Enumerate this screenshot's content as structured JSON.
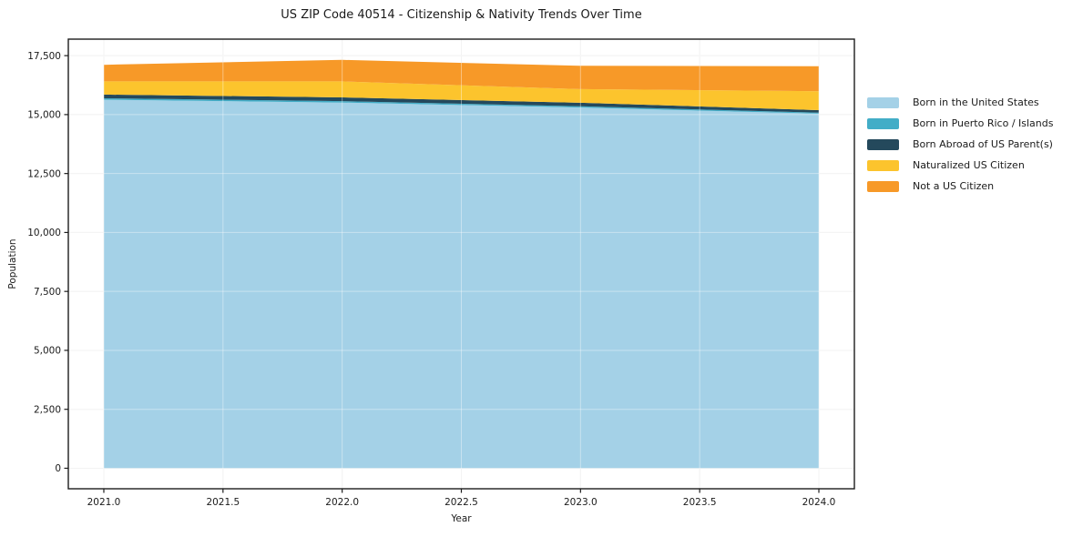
{
  "chart_data": {
    "type": "area",
    "stacked": true,
    "title": "US ZIP Code 40514 - Citizenship & Nativity Trends Over Time",
    "xlabel": "Year",
    "ylabel": "Population",
    "x": [
      2021,
      2022,
      2023,
      2024
    ],
    "series": [
      {
        "name": "Born in the United States",
        "color": "#A4D1E7",
        "values": [
          15630,
          15510,
          15300,
          15040
        ]
      },
      {
        "name": "Born in Puerto Rico / Islands",
        "color": "#42ADC7",
        "values": [
          60,
          60,
          50,
          40
        ]
      },
      {
        "name": "Born Abroad of US Parent(s)",
        "color": "#24495C",
        "values": [
          160,
          160,
          150,
          110
        ]
      },
      {
        "name": "Naturalized US Citizen",
        "color": "#FCC42D",
        "values": [
          560,
          680,
          580,
          800
        ]
      },
      {
        "name": "Not a US Citizen",
        "color": "#F79928",
        "values": [
          700,
          910,
          990,
          1060
        ]
      }
    ],
    "totals": [
      17110,
      17320,
      17070,
      17050
    ],
    "xticks": [
      2021.0,
      2021.5,
      2022.0,
      2022.5,
      2023.0,
      2023.5,
      2024.0
    ],
    "xtick_labels": [
      "2021.0",
      "2021.5",
      "2022.0",
      "2022.5",
      "2023.0",
      "2023.5",
      "2024.0"
    ],
    "yticks": [
      0,
      2500,
      5000,
      7500,
      10000,
      12500,
      15000,
      17500
    ],
    "ytick_labels": [
      "0",
      "2,500",
      "5,000",
      "7,500",
      "10,000",
      "12,500",
      "15,000",
      "17,500"
    ],
    "xlim": [
      2020.851,
      2024.149
    ],
    "ylim": [
      -870,
      18200
    ],
    "grid": true,
    "legend_position": "outside-right",
    "grid_color": "#ececec",
    "spine_color": "#1c1c1c",
    "text_color": "#1a1a1a"
  }
}
